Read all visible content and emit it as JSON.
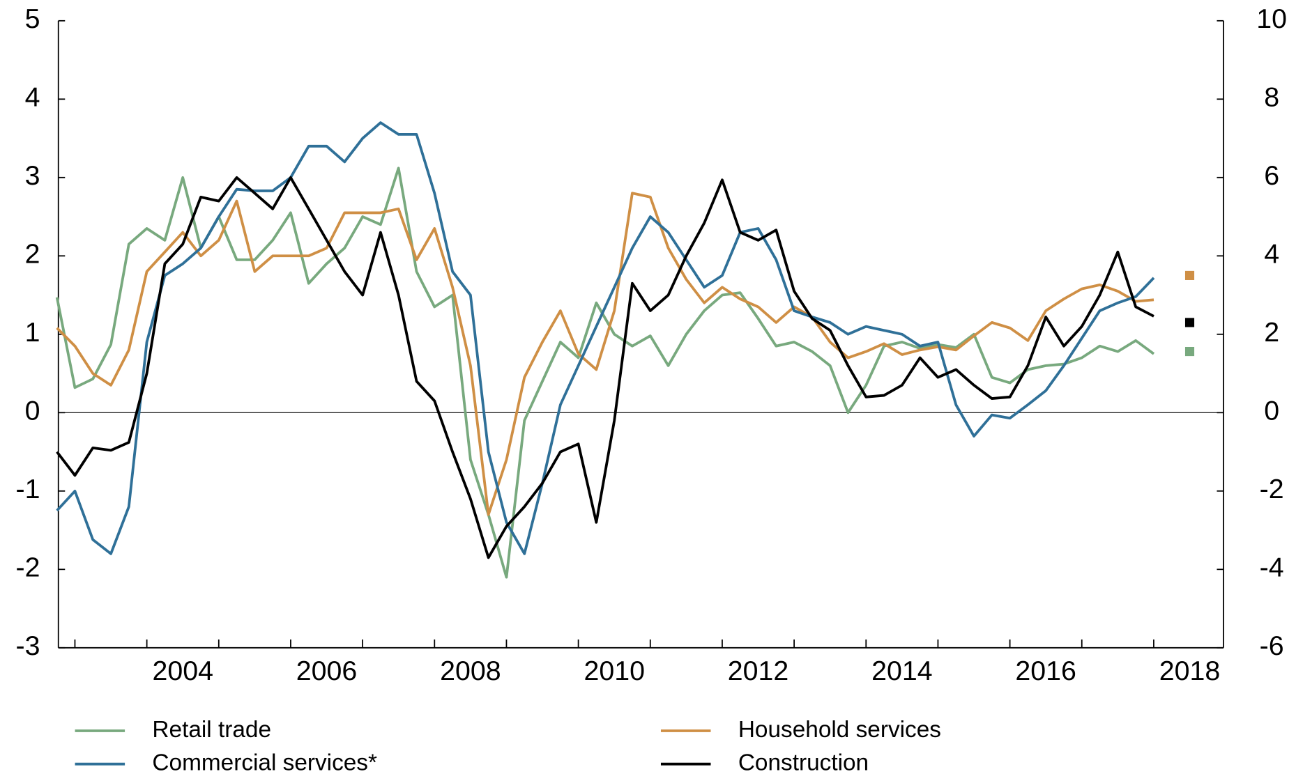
{
  "chart_data": {
    "type": "line",
    "x": [
      2002.75,
      2003,
      2003.25,
      2003.5,
      2003.75,
      2004,
      2004.25,
      2004.5,
      2004.75,
      2005,
      2005.25,
      2005.5,
      2005.75,
      2006,
      2006.25,
      2006.5,
      2006.75,
      2007,
      2007.25,
      2007.5,
      2007.75,
      2008,
      2008.25,
      2008.5,
      2008.75,
      2009,
      2009.25,
      2009.5,
      2009.75,
      2010,
      2010.25,
      2010.5,
      2010.75,
      2011,
      2011.25,
      2011.5,
      2011.75,
      2012,
      2012.25,
      2012.5,
      2012.75,
      2013,
      2013.25,
      2013.5,
      2013.75,
      2014,
      2014.25,
      2014.5,
      2014.75,
      2015,
      2015.25,
      2015.5,
      2015.75,
      2016,
      2016.25,
      2016.5,
      2016.75,
      2017,
      2017.25,
      2017.5,
      2017.75,
      2018
    ],
    "xlim": [
      2002.77,
      2018.97
    ],
    "xticks": [
      {
        "value": 2004.5,
        "label": "2004"
      },
      {
        "value": 2006.5,
        "label": "2006"
      },
      {
        "value": 2008.5,
        "label": "2008"
      },
      {
        "value": 2010.5,
        "label": "2010"
      },
      {
        "value": 2012.5,
        "label": "2012"
      },
      {
        "value": 2014.5,
        "label": "2014"
      },
      {
        "value": 2016.5,
        "label": "2016"
      },
      {
        "value": 2018.5,
        "label": "2018"
      }
    ],
    "xminorticks": [
      2003,
      2004,
      2005,
      2006,
      2007,
      2008,
      2009,
      2010,
      2011,
      2012,
      2013,
      2014,
      2015,
      2016,
      2017,
      2018
    ],
    "ylim": [
      -3,
      5
    ],
    "yticks": [
      -3,
      -2,
      -1,
      0,
      1,
      2,
      3,
      4,
      5
    ],
    "y2lim": [
      -6,
      10
    ],
    "y2ticks": [
      -6,
      -4,
      -2,
      0,
      2,
      4,
      6,
      8,
      10
    ],
    "series": [
      {
        "name": "Retail trade",
        "color": "#78a97e",
        "values": [
          1.47,
          0.32,
          0.43,
          0.87,
          2.15,
          2.35,
          2.2,
          3.0,
          2.1,
          2.5,
          1.95,
          1.95,
          2.2,
          2.55,
          1.65,
          1.9,
          2.1,
          2.5,
          2.4,
          3.12,
          1.8,
          1.35,
          1.5,
          -0.6,
          -1.3,
          -2.1,
          -0.1,
          0.4,
          0.9,
          0.7,
          1.4,
          1.0,
          0.85,
          0.98,
          0.6,
          1.0,
          1.3,
          1.5,
          1.53,
          1.2,
          0.85,
          0.9,
          0.78,
          0.6,
          0.0,
          0.35,
          0.85,
          0.9,
          0.82,
          0.87,
          0.83,
          1.0,
          0.45,
          0.38,
          0.55,
          0.6,
          0.62,
          0.7,
          0.85,
          0.78,
          0.92,
          0.75
        ],
        "marker": {
          "x": 2018.5,
          "value": 0.78
        }
      },
      {
        "name": "Household services",
        "color": "#cf8f45",
        "values": [
          1.08,
          0.85,
          0.5,
          0.35,
          0.8,
          1.8,
          2.05,
          2.3,
          2.0,
          2.2,
          2.7,
          1.8,
          2.0,
          2.0,
          2.0,
          2.1,
          2.55,
          2.55,
          2.55,
          2.6,
          1.95,
          2.35,
          1.6,
          0.6,
          -1.3,
          -0.6,
          0.45,
          0.9,
          1.3,
          0.75,
          0.55,
          1.3,
          2.8,
          2.75,
          2.1,
          1.7,
          1.4,
          1.6,
          1.45,
          1.35,
          1.15,
          1.35,
          1.22,
          0.9,
          0.7,
          0.78,
          0.88,
          0.74,
          0.8,
          0.84,
          0.8,
          0.98,
          1.15,
          1.08,
          0.92,
          1.3,
          1.45,
          1.58,
          1.63,
          1.55,
          1.42,
          1.44
        ],
        "marker": {
          "x": 2018.5,
          "value": 1.75
        }
      },
      {
        "name": "Commercial services*",
        "color": "#2f7098",
        "values": [
          -1.25,
          -1.0,
          -1.62,
          -1.8,
          -1.2,
          0.9,
          1.75,
          1.9,
          2.1,
          2.5,
          2.85,
          2.83,
          2.83,
          3.0,
          3.4,
          3.4,
          3.2,
          3.5,
          3.7,
          3.55,
          3.55,
          2.8,
          1.8,
          1.5,
          -0.5,
          -1.4,
          -1.8,
          -0.9,
          0.1,
          0.6,
          1.1,
          1.6,
          2.1,
          2.5,
          2.3,
          1.95,
          1.6,
          1.75,
          2.3,
          2.35,
          1.95,
          1.3,
          1.22,
          1.15,
          1.0,
          1.1,
          1.05,
          1.0,
          0.85,
          0.9,
          0.1,
          -0.3,
          -0.03,
          -0.07,
          0.1,
          0.28,
          0.6,
          0.95,
          1.3,
          1.4,
          1.48,
          1.72
        ]
      },
      {
        "name": "Construction",
        "color": "#000000",
        "axis": "y2",
        "values": [
          -1.0,
          -1.6,
          -0.9,
          -0.96,
          -0.76,
          1.0,
          3.8,
          4.3,
          5.5,
          5.4,
          6.0,
          5.6,
          5.2,
          6.0,
          5.2,
          4.4,
          3.6,
          3.0,
          4.6,
          3.0,
          0.8,
          0.3,
          -1.0,
          -2.2,
          -3.7,
          -2.9,
          -2.4,
          -1.8,
          -1.0,
          -0.8,
          -2.8,
          -0.2,
          3.3,
          2.6,
          3.0,
          4.0,
          4.84,
          5.94,
          4.6,
          4.4,
          4.66,
          3.1,
          2.4,
          2.1,
          1.2,
          0.4,
          0.44,
          0.7,
          1.4,
          0.9,
          1.1,
          0.7,
          0.36,
          0.4,
          1.2,
          2.44,
          1.7,
          2.2,
          3.0,
          4.1,
          2.7,
          2.46
        ],
        "marker": {
          "x": 2018.5,
          "value": 2.3
        }
      }
    ]
  }
}
